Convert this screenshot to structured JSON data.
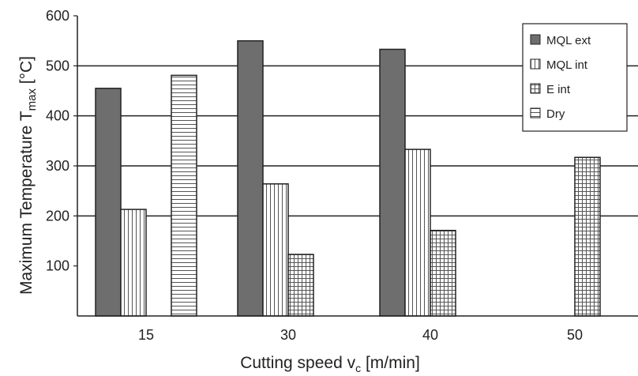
{
  "chart_data": {
    "type": "bar",
    "categories": [
      "15",
      "30",
      "40",
      "50"
    ],
    "series": [
      {
        "name": "MQL ext",
        "values": [
          455,
          550,
          533,
          null
        ],
        "color": "#6e6e6e",
        "pattern": "solid"
      },
      {
        "name": "MQL int",
        "values": [
          213,
          264,
          333,
          null
        ],
        "color": "#ffffff",
        "pattern": "vertical-lines"
      },
      {
        "name": "E int",
        "values": [
          null,
          123,
          171,
          317
        ],
        "color": "#ffffff",
        "pattern": "grid"
      },
      {
        "name": "Dry",
        "values": [
          481,
          null,
          null,
          null
        ],
        "color": "#ffffff",
        "pattern": "horizontal-lines"
      }
    ],
    "xlabel": "Cutting speed v",
    "xlabel_sub": "c",
    "xlabel_unit": " [m/min]",
    "ylabel": "Maximum Temperature T",
    "ylabel_sub": "max",
    "ylabel_unit": " [°C]",
    "ylim": [
      0,
      600
    ],
    "yticks": [
      100,
      200,
      300,
      400,
      500,
      600
    ],
    "gridlines": [
      200,
      300,
      400,
      500
    ],
    "grid": true,
    "legend_position": "top-right"
  }
}
